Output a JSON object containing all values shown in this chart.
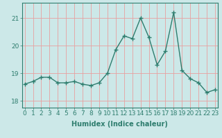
{
  "x": [
    0,
    1,
    2,
    3,
    4,
    5,
    6,
    7,
    8,
    9,
    10,
    11,
    12,
    13,
    14,
    15,
    16,
    17,
    18,
    19,
    20,
    21,
    22,
    23
  ],
  "y": [
    18.6,
    18.7,
    18.85,
    18.85,
    18.65,
    18.65,
    18.7,
    18.6,
    18.55,
    18.65,
    19.0,
    19.85,
    20.35,
    20.25,
    21.0,
    20.3,
    19.3,
    19.8,
    21.2,
    19.1,
    18.8,
    18.65,
    18.3,
    18.4
  ],
  "line_color": "#2e7d6e",
  "marker": "+",
  "marker_size": 4,
  "marker_linewidth": 1.0,
  "bg_color": "#cce8e8",
  "grid_color": "#e8a0a0",
  "xlabel": "Humidex (Indice chaleur)",
  "ylabel": "",
  "yticks": [
    18,
    19,
    20,
    21
  ],
  "xticks": [
    0,
    1,
    2,
    3,
    4,
    5,
    6,
    7,
    8,
    9,
    10,
    11,
    12,
    13,
    14,
    15,
    16,
    17,
    18,
    19,
    20,
    21,
    22,
    23
  ],
  "xlim": [
    -0.3,
    23.3
  ],
  "ylim": [
    17.75,
    21.55
  ],
  "xlabel_fontsize": 7,
  "tick_fontsize": 6.5,
  "line_width": 1.0,
  "spine_color": "#2e7d6e"
}
